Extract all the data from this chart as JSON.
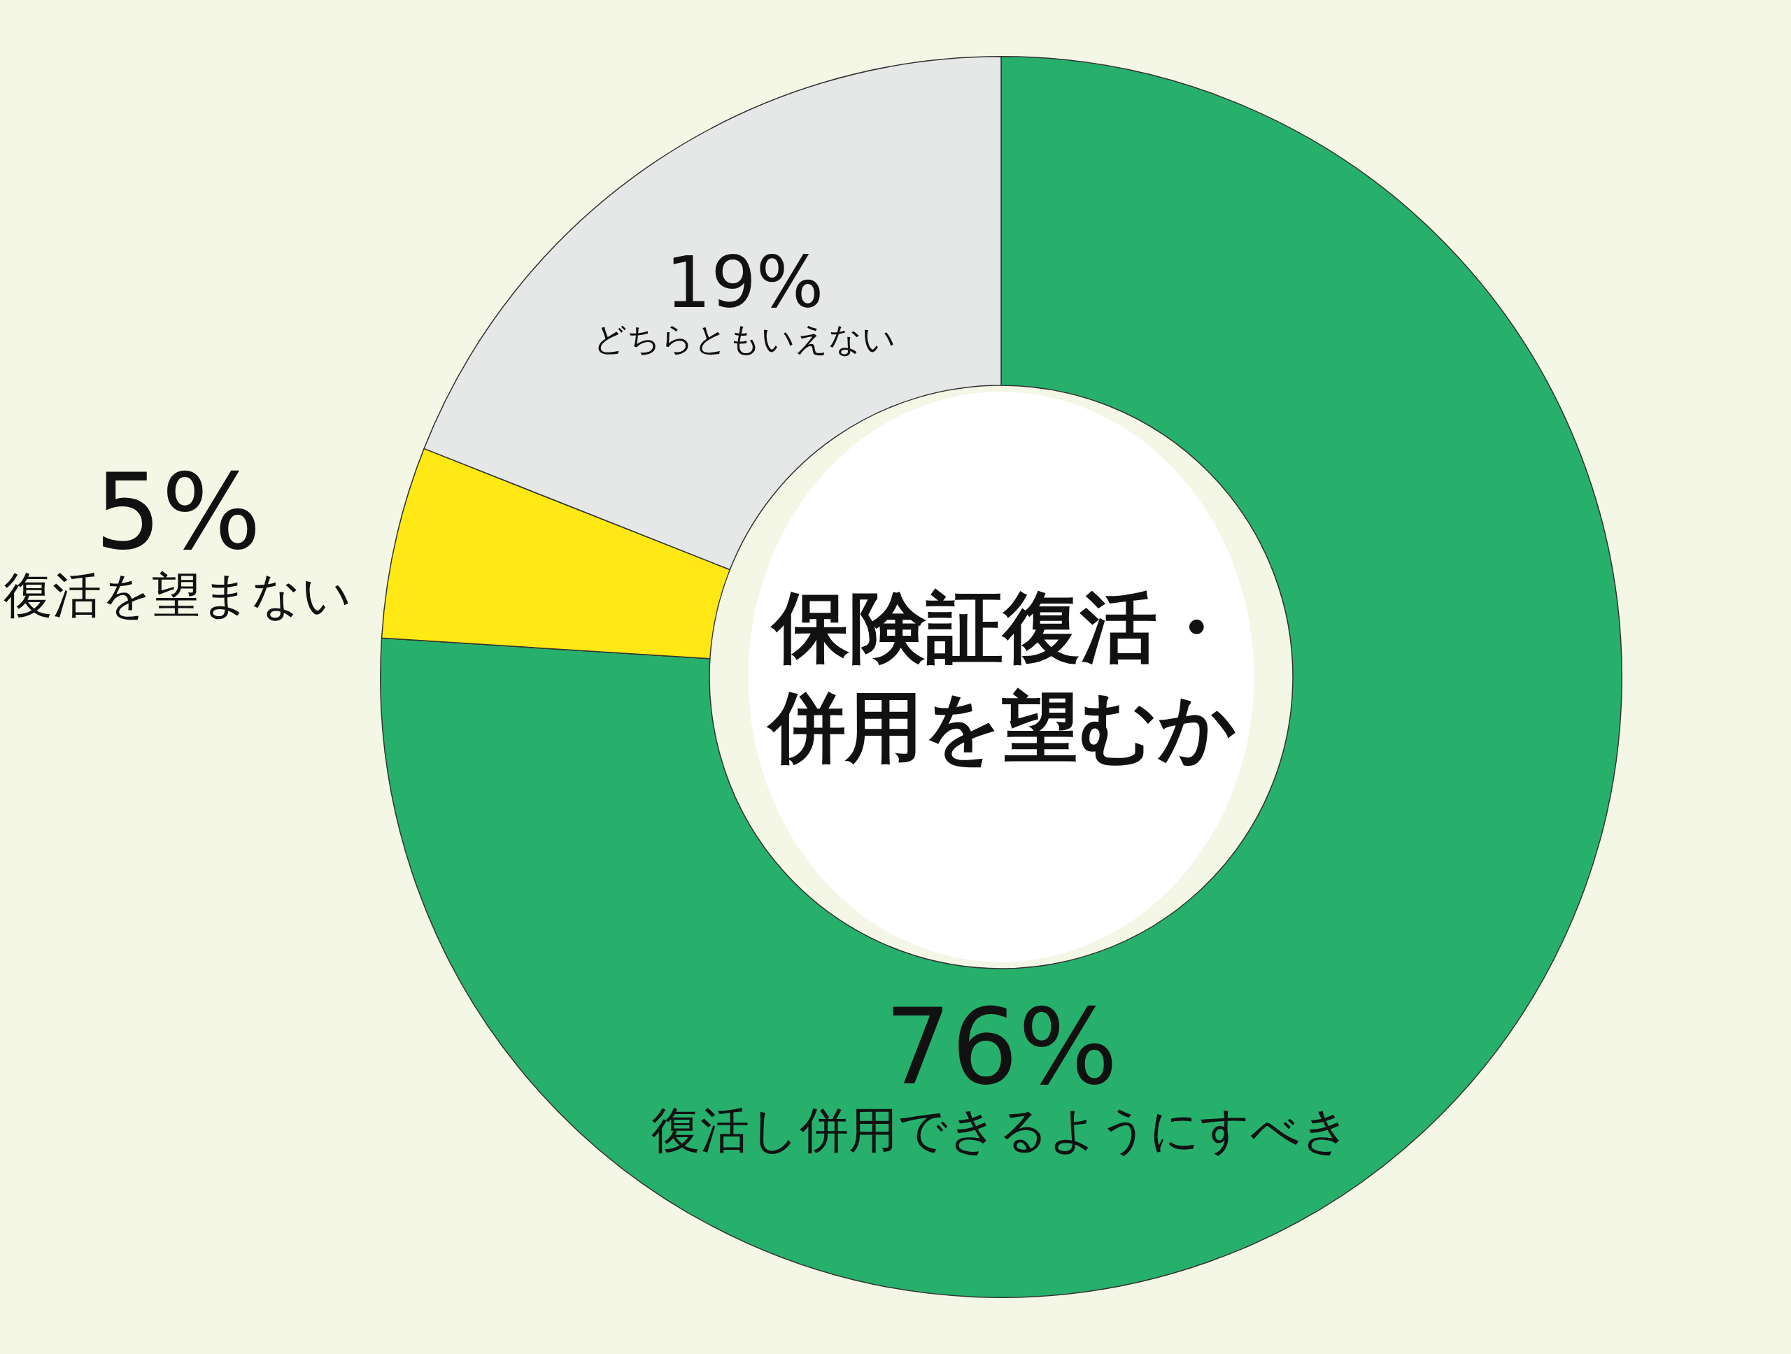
{
  "chart_data": {
    "type": "donut",
    "title": "保険証復活・併用を望むか",
    "categories": [
      "復活し併用できるようにすべき",
      "復活を望まない",
      "どちらともいえない"
    ],
    "values": [
      76,
      5,
      19
    ],
    "value_labels": [
      "76%",
      "5%",
      "19%"
    ],
    "colors": [
      "#27b06c",
      "#ffe814",
      "#e5e8e6"
    ],
    "legend": false
  }
}
